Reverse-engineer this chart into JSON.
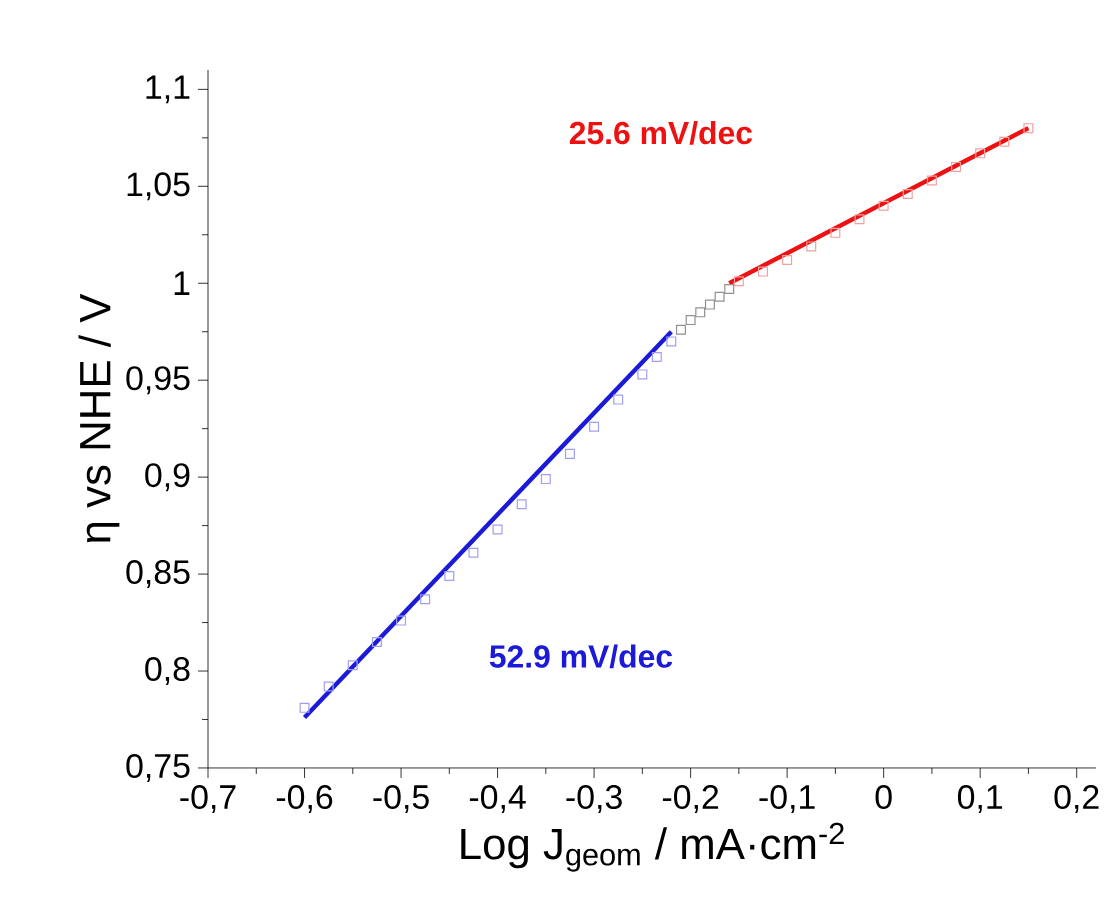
{
  "chart_data": {
    "type": "scatter",
    "xlabel": "Log J$_{geom}$ / mA·cm$^{-2}$",
    "ylabel": "η vs NHE / V",
    "xlim": [
      -0.7,
      0.22
    ],
    "ylim": [
      0.75,
      1.11
    ],
    "xticks": [
      {
        "value": -0.7,
        "label": "-0,7"
      },
      {
        "value": -0.6,
        "label": "-0,6"
      },
      {
        "value": -0.5,
        "label": "-0,5"
      },
      {
        "value": -0.4,
        "label": "-0,4"
      },
      {
        "value": -0.3,
        "label": "-0,3"
      },
      {
        "value": -0.2,
        "label": "-0,2"
      },
      {
        "value": -0.1,
        "label": "-0,1"
      },
      0,
      {
        "value": 0.1,
        "label": "0,1"
      },
      {
        "value": 0.2,
        "label": "0,2"
      }
    ],
    "yticks": [
      {
        "value": 0.75,
        "label": "0,75"
      },
      {
        "value": 0.8,
        "label": "0,8"
      },
      {
        "value": 0.85,
        "label": "0,85"
      },
      {
        "value": 0.9,
        "label": "0,9"
      },
      {
        "value": 0.95,
        "label": "0,95"
      },
      1,
      {
        "value": 1.05,
        "label": "1,05"
      },
      {
        "value": 1.1,
        "label": "1,1"
      }
    ],
    "grid": false,
    "series": [
      {
        "marker": "square",
        "color": "#a0a0f0",
        "x": [
          -0.6,
          -0.575,
          -0.55,
          -0.525,
          -0.5,
          -0.475,
          -0.45,
          -0.425,
          -0.4,
          -0.375,
          -0.35,
          -0.325,
          -0.3,
          -0.275,
          -0.25,
          -0.235,
          -0.22
        ],
        "values": [
          0.781,
          0.792,
          0.803,
          0.815,
          0.826,
          0.837,
          0.849,
          0.861,
          0.873,
          0.886,
          0.899,
          0.912,
          0.926,
          0.94,
          0.953,
          0.962,
          0.97
        ]
      },
      {
        "marker": "square",
        "color": "#909090",
        "x": [
          -0.21,
          -0.2,
          -0.19,
          -0.18,
          -0.17,
          -0.16
        ],
        "values": [
          0.976,
          0.981,
          0.985,
          0.989,
          0.993,
          0.997
        ]
      },
      {
        "marker": "square",
        "color": "#f0a0a0",
        "x": [
          -0.15,
          -0.125,
          -0.1,
          -0.075,
          -0.05,
          -0.025,
          0,
          0.025,
          0.05,
          0.075,
          0.1,
          0.125,
          0.15
        ],
        "values": [
          1.001,
          1.006,
          1.012,
          1.019,
          1.026,
          1.033,
          1.04,
          1.046,
          1.053,
          1.06,
          1.067,
          1.073,
          1.08
        ]
      },
      {
        "type": "line",
        "marker": "none",
        "color": "#1a1ad8",
        "x": [
          -0.6,
          -0.22
        ],
        "values": [
          0.776,
          0.975
        ]
      },
      {
        "type": "line",
        "marker": "none",
        "color": "#ee1111",
        "x": [
          -0.16,
          0.15
        ],
        "values": [
          1.0,
          1.08
        ]
      }
    ],
    "annotations": [
      "52.9 mV/dec",
      "25.6 mV/dec"
    ]
  }
}
